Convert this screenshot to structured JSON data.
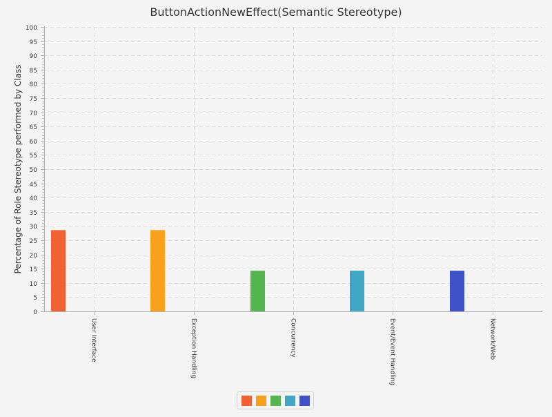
{
  "chart_data": {
    "type": "bar",
    "title": "ButtonActionNewEffect(Semantic Stereotype)",
    "xlabel": "",
    "ylabel": "Percentage of Role Stereotype performed by Class",
    "ylim": [
      0,
      100
    ],
    "yticks": [
      "0",
      "5",
      "10",
      "15",
      "20",
      "25",
      "30",
      "35",
      "40",
      "45",
      "50",
      "55",
      "60",
      "65",
      "70",
      "75",
      "80",
      "85",
      "90",
      "95",
      "100"
    ],
    "grid": true,
    "legend_position": "bottom",
    "categories": [
      "User Interface",
      "Exception Handling",
      "Concurrency",
      "Event/Event Handling",
      "Network/Web"
    ],
    "values": [
      28.57,
      28.57,
      14.29,
      14.29,
      14.29
    ],
    "colors": [
      "#f06233",
      "#f9a11b",
      "#55b54e",
      "#40a7c7",
      "#3f51c6"
    ]
  }
}
